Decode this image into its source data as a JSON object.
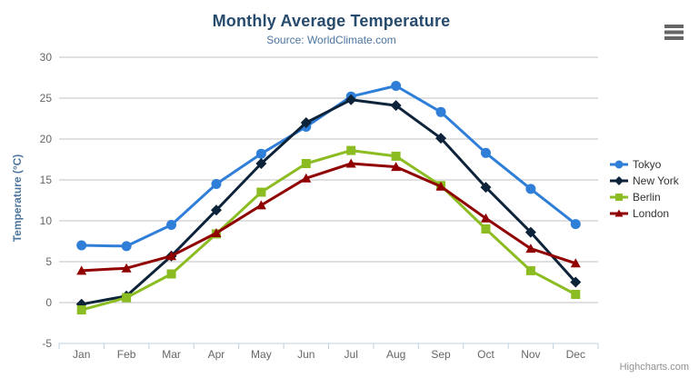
{
  "credits": {
    "text": "Highcharts.com"
  },
  "export_menu": {
    "icon": "hamburger-menu-icon"
  },
  "style": {
    "title_color": "#274b6d",
    "subtitle_color": "#4d759e",
    "axis_title_color": "#4d759e",
    "tick_label_color": "#666666",
    "grid_color": "#c0c0c0",
    "axis_line_color": "#c0d0e0",
    "legend_text_color": "#333333",
    "credits_color": "#909090",
    "background": "#ffffff"
  },
  "chart_data": {
    "type": "line",
    "title": "Monthly Average Temperature",
    "subtitle": "Source: WorldClimate.com",
    "xlabel": "",
    "ylabel": "Temperature (°C)",
    "categories": [
      "Jan",
      "Feb",
      "Mar",
      "Apr",
      "May",
      "Jun",
      "Jul",
      "Aug",
      "Sep",
      "Oct",
      "Nov",
      "Dec"
    ],
    "series": [
      {
        "name": "Tokyo",
        "color": "#2f7ed8",
        "marker": "circle",
        "values": [
          7.0,
          6.9,
          9.5,
          14.5,
          18.2,
          21.5,
          25.2,
          26.5,
          23.3,
          18.3,
          13.9,
          9.6
        ]
      },
      {
        "name": "New York",
        "color": "#0d233a",
        "marker": "diamond",
        "values": [
          -0.2,
          0.8,
          5.7,
          11.3,
          17.0,
          22.0,
          24.8,
          24.1,
          20.1,
          14.1,
          8.6,
          2.5
        ]
      },
      {
        "name": "Berlin",
        "color": "#8bbc21",
        "marker": "square",
        "values": [
          -0.9,
          0.6,
          3.5,
          8.4,
          13.5,
          17.0,
          18.6,
          17.9,
          14.3,
          9.0,
          3.9,
          1.0
        ]
      },
      {
        "name": "London",
        "color": "#910000",
        "marker": "triangle",
        "values": [
          3.9,
          4.2,
          5.7,
          8.5,
          11.9,
          15.2,
          17.0,
          16.6,
          14.2,
          10.3,
          6.6,
          4.8
        ]
      }
    ],
    "ylim": [
      -5,
      30
    ],
    "ytick_step": 5,
    "grid": true,
    "legend_position": "right"
  }
}
